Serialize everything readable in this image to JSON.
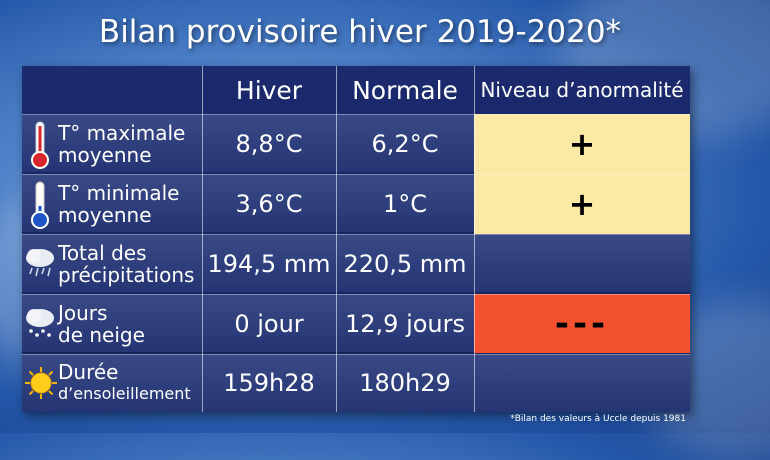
{
  "title": "Bilan provisoire hiver 2019-2020*",
  "headers": {
    "season": "Hiver",
    "normal": "Normale",
    "level": "Niveau d’anormalité"
  },
  "rows": [
    {
      "label1": "T° maximale",
      "label2": "moyenne",
      "value": "8,8°C",
      "normal": "6,2°C",
      "level": "+",
      "level_color": "#fbe9a6",
      "icon": "thermometer-red-icon"
    },
    {
      "label1": "T° minimale",
      "label2": "moyenne",
      "value": "3,6°C",
      "normal": "1°C",
      "level": "+",
      "level_color": "#fbe9a6",
      "icon": "thermometer-blue-icon"
    },
    {
      "label1": "Total des",
      "label2": "précipitations",
      "value": "194,5 mm",
      "normal": "220,5 mm",
      "level": "",
      "icon": "rain-cloud-icon"
    },
    {
      "label1": "Jours",
      "label2": "de neige",
      "value": "0 jour",
      "normal": "12,9 jours",
      "level": "---",
      "level_color": "#f4522e",
      "icon": "snow-cloud-icon"
    },
    {
      "label1": "Durée",
      "label2": "d’ensoleillement",
      "value": "159h28",
      "normal": "180h29",
      "level": "",
      "icon": "sun-icon"
    }
  ],
  "footnote": "*Bilan des valeurs à Uccle depuis 1981"
}
